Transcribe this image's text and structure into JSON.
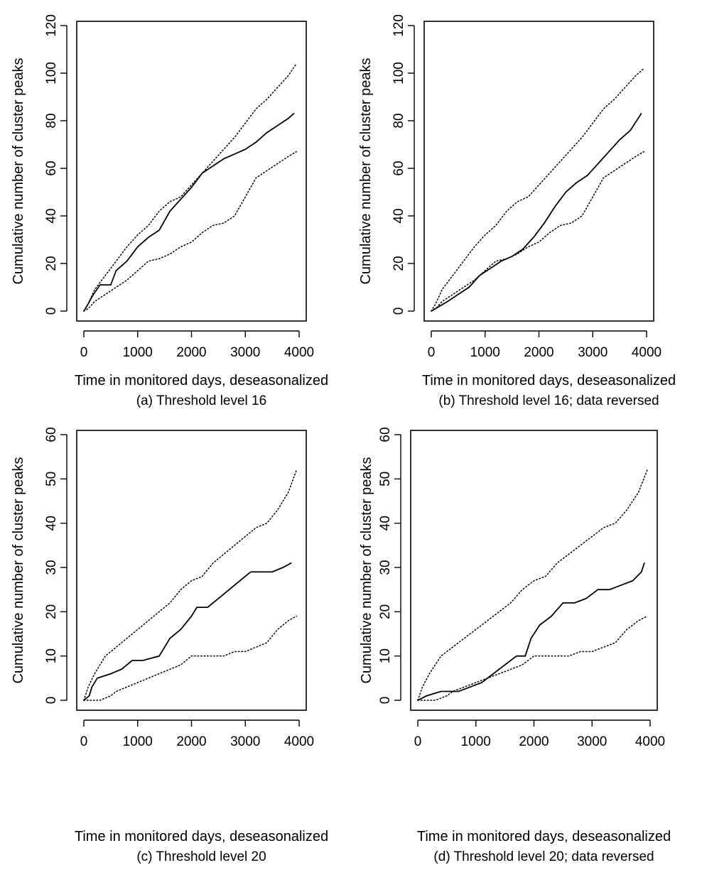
{
  "chart_data": [
    {
      "type": "line",
      "panel": "a",
      "xlabel": "Time in monitored days, deseasonalized",
      "caption": "(a) Threshold level 16",
      "ylabel": "Cumulative number of cluster peaks",
      "xlim": [
        0,
        4000
      ],
      "ylim": [
        0,
        120
      ],
      "xticks": [
        0,
        1000,
        2000,
        3000,
        4000
      ],
      "yticks": [
        0,
        20,
        40,
        60,
        80,
        100,
        120
      ],
      "grid": false,
      "series": [
        {
          "style": "solid",
          "x": [
            0,
            80,
            150,
            300,
            500,
            600,
            800,
            1000,
            1200,
            1400,
            1600,
            1800,
            2000,
            2200,
            2400,
            2600,
            2800,
            3000,
            3200,
            3400,
            3600,
            3800,
            3900
          ],
          "y": [
            0,
            3,
            6,
            11,
            11,
            17,
            21,
            27,
            31,
            34,
            42,
            47,
            52,
            58,
            61,
            64,
            66,
            68,
            71,
            75,
            78,
            81,
            83
          ]
        },
        {
          "style": "dotted",
          "x": [
            0,
            80,
            200,
            400,
            600,
            800,
            1000,
            1200,
            1400,
            1600,
            1800,
            2000,
            2200,
            2400,
            2600,
            2800,
            3000,
            3200,
            3400,
            3600,
            3800,
            3950
          ],
          "y": [
            0,
            3,
            9,
            15,
            21,
            27,
            32,
            36,
            42,
            46,
            48,
            53,
            58,
            63,
            68,
            73,
            79,
            85,
            89,
            94,
            99,
            104
          ]
        },
        {
          "style": "dotted",
          "x": [
            0,
            80,
            200,
            400,
            600,
            800,
            1000,
            1200,
            1400,
            1600,
            1800,
            2000,
            2200,
            2400,
            2600,
            2800,
            3000,
            3200,
            3400,
            3600,
            3800,
            3950
          ],
          "y": [
            0,
            1,
            4,
            7,
            10,
            13,
            17,
            21,
            22,
            24,
            27,
            29,
            33,
            36,
            37,
            40,
            48,
            56,
            59,
            62,
            65,
            67
          ]
        }
      ]
    },
    {
      "type": "line",
      "panel": "b",
      "xlabel": "Time in monitored days, deseasonalized",
      "caption": "(b) Threshold level 16; data reversed",
      "ylabel": "Cumulative number of cluster peaks",
      "xlim": [
        0,
        4000
      ],
      "ylim": [
        0,
        120
      ],
      "xticks": [
        0,
        1000,
        2000,
        3000,
        4000
      ],
      "yticks": [
        0,
        20,
        40,
        60,
        80,
        100,
        120
      ],
      "grid": false,
      "series": [
        {
          "style": "solid",
          "x": [
            0,
            150,
            300,
            500,
            700,
            900,
            1100,
            1300,
            1500,
            1700,
            1900,
            2100,
            2300,
            2500,
            2700,
            2900,
            3100,
            3300,
            3500,
            3700,
            3900
          ],
          "y": [
            0,
            2,
            4,
            7,
            10,
            15,
            18,
            21,
            23,
            26,
            31,
            37,
            44,
            50,
            54,
            57,
            62,
            67,
            72,
            76,
            83
          ]
        },
        {
          "style": "dotted",
          "x": [
            0,
            80,
            200,
            400,
            600,
            800,
            1000,
            1200,
            1400,
            1600,
            1800,
            2000,
            2200,
            2400,
            2600,
            2800,
            3000,
            3200,
            3400,
            3600,
            3800,
            3950
          ],
          "y": [
            0,
            3,
            9,
            15,
            21,
            27,
            32,
            36,
            42,
            46,
            48,
            53,
            58,
            63,
            68,
            73,
            79,
            85,
            89,
            94,
            99,
            102
          ]
        },
        {
          "style": "dotted",
          "x": [
            0,
            80,
            200,
            400,
            600,
            800,
            1000,
            1200,
            1400,
            1600,
            1800,
            2000,
            2200,
            2400,
            2600,
            2800,
            3000,
            3200,
            3400,
            3600,
            3800,
            3950
          ],
          "y": [
            0,
            1,
            4,
            7,
            10,
            13,
            17,
            21,
            22,
            24,
            27,
            29,
            33,
            36,
            37,
            40,
            48,
            56,
            59,
            62,
            65,
            67
          ]
        }
      ]
    },
    {
      "type": "line",
      "panel": "c",
      "xlabel": "Time in monitored days, deseasonalized",
      "caption": "(c) Threshold level 20",
      "ylabel": "Cumulative number of cluster peaks",
      "xlim": [
        0,
        4000
      ],
      "ylim": [
        0,
        60
      ],
      "xticks": [
        0,
        1000,
        2000,
        3000,
        4000
      ],
      "yticks": [
        0,
        10,
        20,
        30,
        40,
        50,
        60
      ],
      "grid": false,
      "series": [
        {
          "style": "solid",
          "x": [
            0,
            100,
            150,
            250,
            500,
            700,
            900,
            1100,
            1400,
            1600,
            1800,
            2000,
            2100,
            2300,
            2500,
            2700,
            2900,
            3100,
            3300,
            3500,
            3700,
            3850
          ],
          "y": [
            0,
            1,
            3,
            5,
            6,
            7,
            9,
            9,
            10,
            14,
            16,
            19,
            21,
            21,
            23,
            25,
            27,
            29,
            29,
            29,
            30,
            31
          ]
        },
        {
          "style": "dotted",
          "x": [
            0,
            80,
            200,
            400,
            600,
            800,
            1000,
            1200,
            1400,
            1600,
            1800,
            2000,
            2200,
            2400,
            2600,
            2800,
            3000,
            3200,
            3400,
            3600,
            3800,
            3950
          ],
          "y": [
            0,
            3,
            6,
            10,
            12,
            14,
            16,
            18,
            20,
            22,
            25,
            27,
            28,
            31,
            33,
            35,
            37,
            39,
            40,
            43,
            47,
            52
          ]
        },
        {
          "style": "dotted",
          "x": [
            0,
            80,
            300,
            500,
            600,
            800,
            1000,
            1200,
            1400,
            1600,
            1800,
            2000,
            2200,
            2400,
            2600,
            2800,
            3000,
            3200,
            3400,
            3600,
            3800,
            3950
          ],
          "y": [
            0,
            0,
            0,
            1,
            2,
            3,
            4,
            5,
            6,
            7,
            8,
            10,
            10,
            10,
            10,
            11,
            11,
            12,
            13,
            16,
            18,
            19
          ]
        }
      ]
    },
    {
      "type": "line",
      "panel": "d",
      "xlabel": "Time in monitored days, deseasonalized",
      "caption": "(d) Threshold level 20; data reversed",
      "ylabel": "Cumulative number of cluster peaks",
      "xlim": [
        0,
        4000
      ],
      "ylim": [
        0,
        60
      ],
      "xticks": [
        0,
        1000,
        2000,
        3000,
        4000
      ],
      "yticks": [
        0,
        10,
        20,
        30,
        40,
        50,
        60
      ],
      "grid": false,
      "series": [
        {
          "style": "solid",
          "x": [
            0,
            150,
            400,
            700,
            900,
            1100,
            1300,
            1500,
            1700,
            1850,
            1950,
            2100,
            2300,
            2500,
            2700,
            2900,
            3100,
            3300,
            3500,
            3700,
            3850,
            3900
          ],
          "y": [
            0,
            1,
            2,
            2,
            3,
            4,
            6,
            8,
            10,
            10,
            14,
            17,
            19,
            22,
            22,
            23,
            25,
            25,
            26,
            27,
            29,
            31
          ]
        },
        {
          "style": "dotted",
          "x": [
            0,
            80,
            200,
            400,
            600,
            800,
            1000,
            1200,
            1400,
            1600,
            1800,
            2000,
            2200,
            2400,
            2600,
            2800,
            3000,
            3200,
            3400,
            3600,
            3800,
            3950
          ],
          "y": [
            0,
            3,
            6,
            10,
            12,
            14,
            16,
            18,
            20,
            22,
            25,
            27,
            28,
            31,
            33,
            35,
            37,
            39,
            40,
            43,
            47,
            52
          ]
        },
        {
          "style": "dotted",
          "x": [
            0,
            80,
            300,
            500,
            600,
            800,
            1000,
            1200,
            1400,
            1600,
            1800,
            2000,
            2200,
            2400,
            2600,
            2800,
            3000,
            3200,
            3400,
            3600,
            3800,
            3950
          ],
          "y": [
            0,
            0,
            0,
            1,
            2,
            3,
            4,
            5,
            6,
            7,
            8,
            10,
            10,
            10,
            10,
            11,
            11,
            12,
            13,
            16,
            18,
            19
          ]
        }
      ]
    }
  ]
}
